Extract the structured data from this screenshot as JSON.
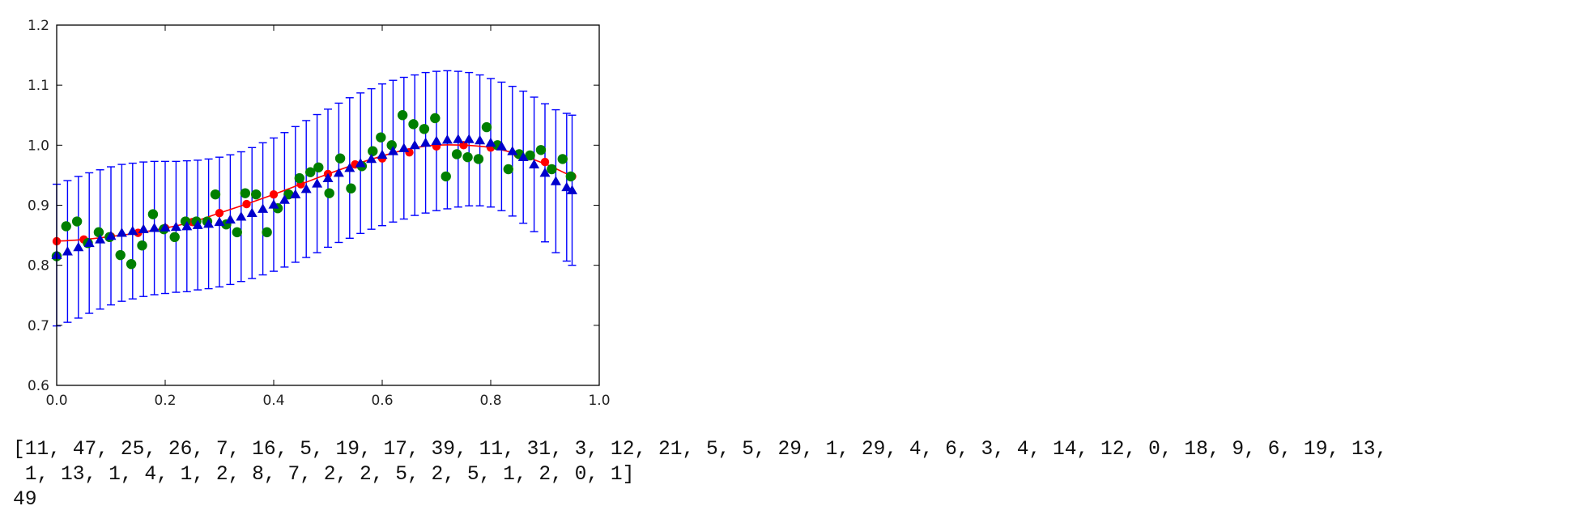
{
  "chart_data": {
    "type": "scatter",
    "title": "",
    "xlabel": "",
    "ylabel": "",
    "xlim": [
      0.0,
      1.0
    ],
    "ylim": [
      0.6,
      1.2
    ],
    "grid": false,
    "x_ticks": [
      "0.0",
      "0.2",
      "0.4",
      "0.6",
      "0.8",
      "1.0"
    ],
    "y_ticks": [
      "0.6",
      "0.7",
      "0.8",
      "0.9",
      "1.0",
      "1.1",
      "1.2"
    ],
    "colors": {
      "curve": "#ff0000",
      "red_points": "#ff0000",
      "green_points": "#007f00",
      "blue_points": "#0000cc",
      "error_bars": "#0000ff"
    },
    "series": [
      {
        "kind": "line",
        "x": [
          0.0,
          0.05,
          0.1,
          0.15,
          0.2,
          0.25,
          0.3,
          0.35,
          0.4,
          0.45,
          0.5,
          0.55,
          0.6,
          0.65,
          0.7,
          0.75,
          0.8,
          0.85,
          0.9,
          0.95
        ],
        "y": [
          0.84,
          0.843,
          0.848,
          0.854,
          0.862,
          0.872,
          0.887,
          0.902,
          0.918,
          0.935,
          0.952,
          0.968,
          0.982,
          0.994,
          1.0,
          1.0,
          0.996,
          0.985,
          0.969,
          0.948
        ]
      },
      {
        "kind": "points",
        "x": [
          0.0,
          0.05,
          0.1,
          0.15,
          0.2,
          0.25,
          0.3,
          0.35,
          0.4,
          0.45,
          0.5,
          0.55,
          0.6,
          0.65,
          0.7,
          0.75,
          0.8,
          0.85,
          0.9,
          0.95
        ],
        "y": [
          0.84,
          0.843,
          0.848,
          0.854,
          0.862,
          0.872,
          0.887,
          0.902,
          0.918,
          0.935,
          0.952,
          0.968,
          0.978,
          0.988,
          0.998,
          1.0,
          0.996,
          0.985,
          0.972,
          0.948
        ]
      },
      {
        "kind": "points",
        "x": [
          0.0,
          0.0175,
          0.0375,
          0.0575,
          0.0775,
          0.0975,
          0.1175,
          0.1375,
          0.1575,
          0.1775,
          0.1975,
          0.2175,
          0.2375,
          0.2575,
          0.2775,
          0.2925,
          0.3125,
          0.3325,
          0.3475,
          0.3675,
          0.3875,
          0.4075,
          0.4275,
          0.4475,
          0.4675,
          0.4825,
          0.5025,
          0.5225,
          0.5425,
          0.5625,
          0.5825,
          0.5975,
          0.6175,
          0.6375,
          0.6575,
          0.6775,
          0.6975,
          0.7175,
          0.7375,
          0.7575,
          0.7775,
          0.7925,
          0.8125,
          0.8325,
          0.8525,
          0.8725,
          0.8925,
          0.9125,
          0.9325,
          0.9475
        ],
        "y": [
          0.815,
          0.865,
          0.873,
          0.837,
          0.855,
          0.847,
          0.817,
          0.802,
          0.833,
          0.885,
          0.86,
          0.847,
          0.873,
          0.873,
          0.873,
          0.918,
          0.868,
          0.855,
          0.92,
          0.918,
          0.855,
          0.895,
          0.918,
          0.945,
          0.955,
          0.963,
          0.92,
          0.978,
          0.928,
          0.965,
          0.99,
          1.013,
          1.0,
          1.05,
          1.035,
          1.027,
          1.045,
          0.948,
          0.985,
          0.98,
          0.977,
          1.03,
          1.0,
          0.96,
          0.985,
          0.983,
          0.992,
          0.96,
          0.977,
          0.948
        ]
      },
      {
        "kind": "points_with_error",
        "x": [
          0.0,
          0.02,
          0.04,
          0.06,
          0.08,
          0.1,
          0.12,
          0.14,
          0.16,
          0.18,
          0.2,
          0.22,
          0.24,
          0.26,
          0.28,
          0.3,
          0.32,
          0.34,
          0.36,
          0.38,
          0.4,
          0.42,
          0.44,
          0.46,
          0.48,
          0.5,
          0.52,
          0.54,
          0.56,
          0.58,
          0.6,
          0.62,
          0.64,
          0.66,
          0.68,
          0.7,
          0.72,
          0.74,
          0.76,
          0.78,
          0.8,
          0.82,
          0.84,
          0.86,
          0.88,
          0.9,
          0.92,
          0.94,
          0.95
        ],
        "y": [
          0.817,
          0.823,
          0.83,
          0.837,
          0.843,
          0.849,
          0.854,
          0.857,
          0.86,
          0.862,
          0.863,
          0.864,
          0.865,
          0.867,
          0.869,
          0.872,
          0.876,
          0.881,
          0.887,
          0.894,
          0.901,
          0.909,
          0.918,
          0.927,
          0.936,
          0.945,
          0.954,
          0.962,
          0.97,
          0.977,
          0.984,
          0.99,
          0.995,
          1.0,
          1.004,
          1.007,
          1.009,
          1.01,
          1.01,
          1.008,
          1.004,
          0.998,
          0.99,
          0.98,
          0.968,
          0.954,
          0.94,
          0.93,
          0.925
        ],
        "yerr": [
          0.118,
          0.118,
          0.118,
          0.117,
          0.116,
          0.115,
          0.114,
          0.113,
          0.112,
          0.111,
          0.11,
          0.109,
          0.109,
          0.108,
          0.108,
          0.108,
          0.108,
          0.108,
          0.109,
          0.11,
          0.111,
          0.112,
          0.113,
          0.114,
          0.115,
          0.115,
          0.116,
          0.117,
          0.117,
          0.117,
          0.118,
          0.118,
          0.118,
          0.117,
          0.117,
          0.116,
          0.115,
          0.113,
          0.111,
          0.109,
          0.107,
          0.107,
          0.108,
          0.11,
          0.112,
          0.115,
          0.119,
          0.123,
          0.125
        ]
      }
    ]
  },
  "output": {
    "line1": "[11, 47, 25, 26, 7, 16, 5, 19, 17, 39, 11, 31, 3, 12, 21, 5, 5, 29, 1, 29, 4, 6, 3, 4, 14, 12, 0, 18, 9, 6, 19, 13,",
    "line2": " 1, 13, 1, 4, 1, 2, 8, 7, 2, 2, 5, 2, 5, 1, 2, 0, 1]",
    "line3": "49"
  }
}
